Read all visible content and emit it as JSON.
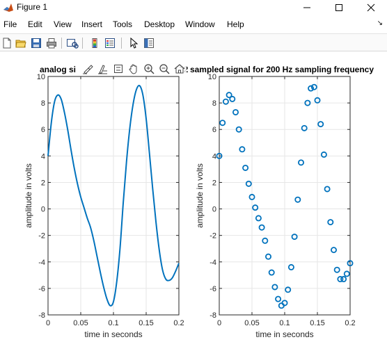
{
  "window": {
    "title": "Figure 1",
    "minimize_icon": "minimize-icon",
    "maximize_icon": "maximize-icon",
    "close_icon": "close-icon"
  },
  "menu": {
    "items": [
      "File",
      "Edit",
      "View",
      "Insert",
      "Tools",
      "Desktop",
      "Window",
      "Help"
    ],
    "dock_icon": "dock-arrow-icon"
  },
  "toolbar": {
    "icons": [
      "new-figure-icon",
      "open-file-icon",
      "save-icon",
      "print-icon",
      "link-plot-icon",
      "insert-colorbar-icon",
      "insert-legend-icon",
      "edit-plot-icon",
      "property-inspector-icon"
    ]
  },
  "axes_toolbar": {
    "icons": [
      "brush-icon",
      "data-tips-icon",
      "rotate-icon",
      "pan-icon",
      "zoom-in-icon",
      "zoom-out-icon",
      "home-icon"
    ]
  },
  "colors": {
    "line": "#0072BD",
    "grid": "#e6e6e6",
    "axis": "#262626"
  },
  "chart_data": [
    {
      "type": "line",
      "title": "analog si",
      "title_overflow": "12",
      "xlabel": "time in seconds",
      "ylabel": "amplitude in volts",
      "xlim": [
        0,
        0.2
      ],
      "ylim": [
        -8,
        10
      ],
      "xticks": [
        "0",
        "0.05",
        "0.1",
        "0.15",
        "0.2"
      ],
      "yticks": [
        "-8",
        "-6",
        "-4",
        "-2",
        "0",
        "2",
        "4",
        "6",
        "8",
        "10"
      ],
      "grid": true,
      "series": [
        {
          "x": [
            0,
            0.005,
            0.01,
            0.015,
            0.02,
            0.025,
            0.03,
            0.035,
            0.04,
            0.045,
            0.05,
            0.055,
            0.06,
            0.065,
            0.07,
            0.075,
            0.08,
            0.085,
            0.09,
            0.095,
            0.1,
            0.105,
            0.11,
            0.115,
            0.12,
            0.125,
            0.13,
            0.135,
            0.14,
            0.145,
            0.15,
            0.155,
            0.16,
            0.165,
            0.17,
            0.175,
            0.18,
            0.185,
            0.19,
            0.195,
            0.2
          ],
          "values": [
            4.0,
            6.5,
            8.1,
            8.6,
            8.3,
            7.3,
            6.0,
            4.5,
            3.1,
            1.9,
            0.9,
            0.1,
            -0.7,
            -1.4,
            -2.4,
            -3.6,
            -4.8,
            -5.9,
            -6.8,
            -7.3,
            -7.0,
            -5.5,
            -3.0,
            0.5,
            3.6,
            6.1,
            7.9,
            9.0,
            9.3,
            8.6,
            6.8,
            4.2,
            1.5,
            -1.0,
            -3.1,
            -4.6,
            -5.3,
            -5.4,
            -5.2,
            -4.7,
            -4.1
          ]
        }
      ]
    },
    {
      "type": "scatter",
      "title": "sampled signal for 200 Hz sampling frequency",
      "xlabel": "time in seconds",
      "ylabel": "amplitude in volts",
      "xlim": [
        0,
        0.2
      ],
      "ylim": [
        -8,
        10
      ],
      "xticks": [
        "0",
        "0.05",
        "0.1",
        "0.15",
        "0.2"
      ],
      "yticks": [
        "-8",
        "-6",
        "-4",
        "-2",
        "0",
        "2",
        "4",
        "6",
        "8",
        "10"
      ],
      "grid": true,
      "series": [
        {
          "x": [
            0,
            0.005,
            0.01,
            0.015,
            0.02,
            0.025,
            0.03,
            0.035,
            0.04,
            0.045,
            0.05,
            0.055,
            0.06,
            0.065,
            0.07,
            0.075,
            0.08,
            0.085,
            0.09,
            0.095,
            0.1,
            0.105,
            0.11,
            0.115,
            0.12,
            0.125,
            0.13,
            0.135,
            0.14,
            0.145,
            0.15,
            0.155,
            0.16,
            0.165,
            0.17,
            0.175,
            0.18,
            0.185,
            0.19,
            0.195,
            0.2
          ],
          "values": [
            4.0,
            6.5,
            8.1,
            8.6,
            8.3,
            7.3,
            6.0,
            4.5,
            3.1,
            1.9,
            0.9,
            0.1,
            -0.7,
            -1.4,
            -2.4,
            -3.6,
            -4.8,
            -5.9,
            -6.8,
            -7.3,
            -7.1,
            -6.1,
            -4.4,
            -2.1,
            0.7,
            3.5,
            6.1,
            8.0,
            9.1,
            9.2,
            8.2,
            6.4,
            4.1,
            1.5,
            -1.0,
            -3.1,
            -4.6,
            -5.3,
            -5.3,
            -4.9,
            -4.1
          ]
        }
      ]
    }
  ]
}
